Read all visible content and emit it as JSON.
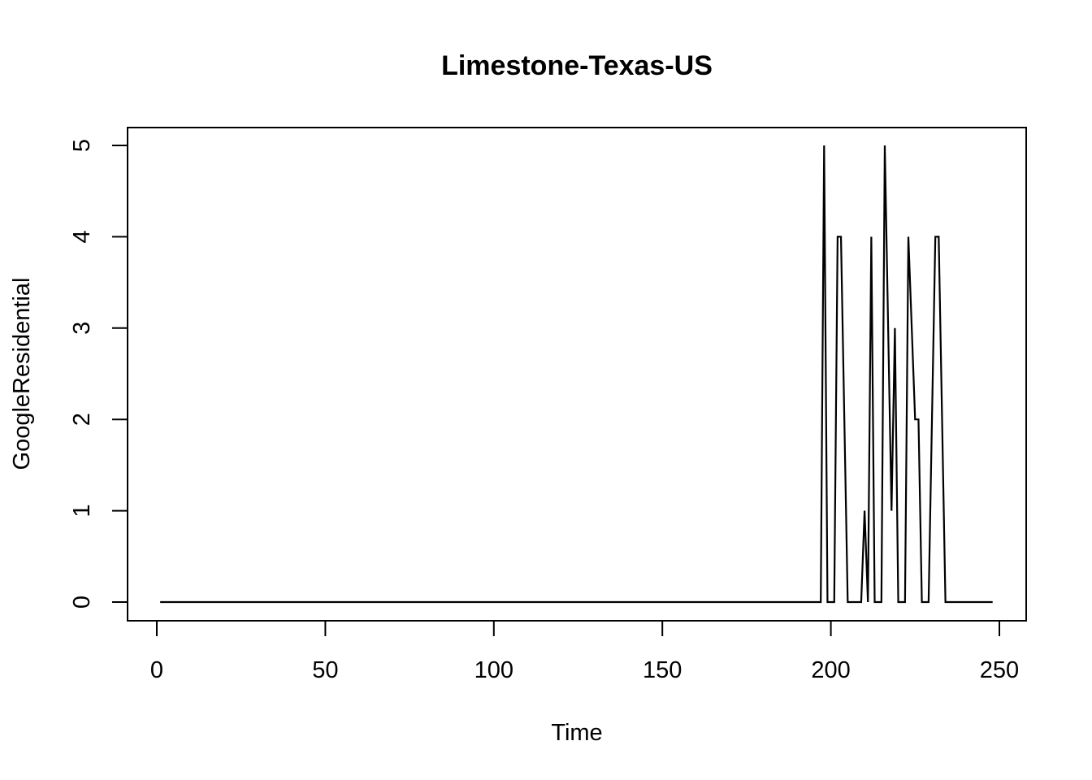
{
  "chart_data": {
    "type": "line",
    "title": "Limestone-Texas-US",
    "xlabel": "Time",
    "ylabel": "GoogleResidential",
    "xlim": [
      1,
      248
    ],
    "ylim": [
      0,
      5
    ],
    "x_ticks": [
      0,
      50,
      100,
      150,
      200,
      250
    ],
    "y_ticks": [
      0,
      1,
      2,
      3,
      4,
      5
    ],
    "grid": false,
    "series": [
      {
        "values": [
          [
            1,
            0
          ],
          [
            197,
            0
          ],
          [
            198,
            5
          ],
          [
            199,
            0
          ],
          [
            201,
            0
          ],
          [
            202,
            4
          ],
          [
            203,
            4
          ],
          [
            205,
            0
          ],
          [
            209,
            0
          ],
          [
            210,
            1
          ],
          [
            211,
            0
          ],
          [
            212,
            4
          ],
          [
            213,
            0
          ],
          [
            215,
            0
          ],
          [
            216,
            5
          ],
          [
            218,
            1
          ],
          [
            219,
            3
          ],
          [
            220,
            0
          ],
          [
            222,
            0
          ],
          [
            223,
            4
          ],
          [
            225,
            2
          ],
          [
            226,
            2
          ],
          [
            227,
            0
          ],
          [
            229,
            0
          ],
          [
            231,
            4
          ],
          [
            232,
            4
          ],
          [
            234,
            0
          ],
          [
            248,
            0
          ]
        ]
      }
    ]
  }
}
